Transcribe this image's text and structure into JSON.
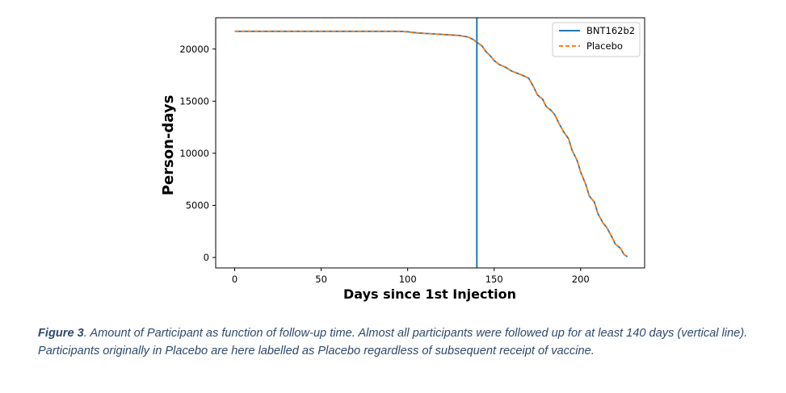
{
  "chart_data": {
    "type": "line",
    "title": "",
    "xlabel": "Days since 1st Injection",
    "ylabel": "Person-days",
    "xlim": [
      -11,
      237
    ],
    "ylim": [
      -1000,
      23000
    ],
    "xticks": [
      0,
      50,
      100,
      150,
      200
    ],
    "yticks": [
      0,
      5000,
      10000,
      15000,
      20000
    ],
    "grid": false,
    "legend_position": "top-right",
    "reference_line": {
      "orientation": "vertical",
      "x": 140,
      "color": "#1f77b4"
    },
    "series": [
      {
        "name": "BNT162b2",
        "color": "#1f77b4",
        "style": "solid",
        "x": [
          0,
          20,
          40,
          60,
          80,
          95,
          100,
          105,
          110,
          115,
          120,
          125,
          130,
          135,
          138,
          140,
          143,
          145,
          148,
          150,
          153,
          156,
          160,
          163,
          166,
          170,
          173,
          175,
          178,
          180,
          183,
          185,
          188,
          190,
          193,
          195,
          198,
          200,
          203,
          205,
          208,
          210,
          213,
          215,
          218,
          220,
          223,
          225,
          227
        ],
        "values": [
          21700,
          21700,
          21700,
          21700,
          21700,
          21700,
          21650,
          21550,
          21500,
          21450,
          21400,
          21350,
          21300,
          21150,
          20900,
          20650,
          20300,
          19800,
          19300,
          18900,
          18500,
          18300,
          17900,
          17700,
          17500,
          17200,
          16300,
          15600,
          15200,
          14500,
          14100,
          13700,
          12700,
          12100,
          11400,
          10300,
          9300,
          8200,
          7000,
          5900,
          5300,
          4200,
          3300,
          2900,
          2000,
          1300,
          900,
          300,
          80
        ]
      },
      {
        "name": "Placebo",
        "color": "#ff7f0e",
        "style": "dashed",
        "x": [
          0,
          20,
          40,
          60,
          80,
          95,
          100,
          105,
          110,
          115,
          120,
          125,
          130,
          135,
          138,
          140,
          143,
          145,
          148,
          150,
          153,
          156,
          160,
          163,
          166,
          170,
          173,
          175,
          178,
          180,
          183,
          185,
          188,
          190,
          193,
          195,
          198,
          200,
          203,
          205,
          208,
          210,
          213,
          215,
          218,
          220,
          223,
          225,
          227
        ],
        "values": [
          21700,
          21700,
          21700,
          21700,
          21700,
          21700,
          21650,
          21550,
          21500,
          21450,
          21400,
          21350,
          21300,
          21150,
          20900,
          20650,
          20300,
          19800,
          19300,
          18900,
          18500,
          18300,
          17900,
          17700,
          17500,
          17200,
          16300,
          15600,
          15200,
          14500,
          14100,
          13700,
          12700,
          12100,
          11400,
          10300,
          9300,
          8200,
          7000,
          5900,
          5300,
          4200,
          3300,
          2900,
          2000,
          1300,
          900,
          300,
          80
        ]
      }
    ]
  },
  "caption": {
    "label": "Figure 3",
    "text": ". Amount of Participant as function of follow-up time. Almost all participants were followed up for at least 140 days (vertical line). Participants originally in Placebo are here labelled as Placebo regardless of subsequent receipt of vaccine."
  }
}
